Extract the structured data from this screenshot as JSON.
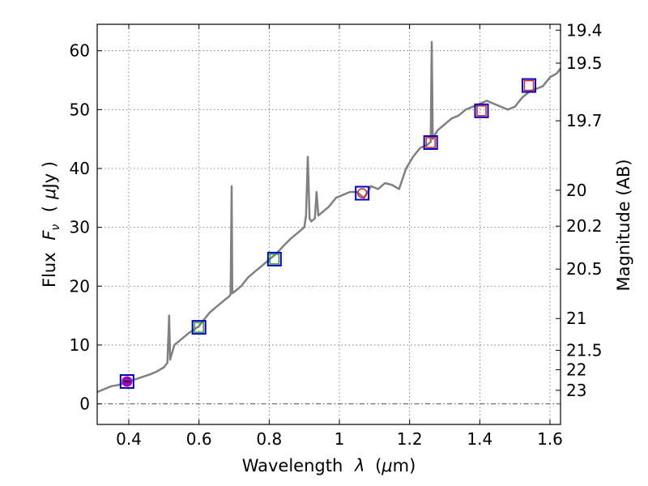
{
  "chart_data": {
    "type": "line",
    "title": "",
    "xlabel": {
      "prefix": "Wavelength",
      "symbol": "λ",
      "unit_open": "(",
      "unit_mu": "μ",
      "unit_rest": "m)"
    },
    "ylabel": {
      "prefix": "Flux",
      "symbol": "F",
      "subscript": "ν",
      "unit_open": "(",
      "unit_mu": "μ",
      "unit_rest": "Jy )"
    },
    "y2label": "Magnitude (AB)",
    "xlim": [
      0.31,
      1.63
    ],
    "ylim": [
      -3.5,
      64.5
    ],
    "x_ticks": [
      {
        "value": 0.4,
        "label": "0.4"
      },
      {
        "value": 0.6,
        "label": "0.6"
      },
      {
        "value": 0.8,
        "label": "0.8"
      },
      {
        "value": 1.0,
        "label": "1"
      },
      {
        "value": 1.2,
        "label": "1.2"
      },
      {
        "value": 1.4,
        "label": "1.4"
      },
      {
        "value": 1.6,
        "label": "1.6"
      }
    ],
    "y_ticks": [
      {
        "value": 0,
        "label": "0"
      },
      {
        "value": 10,
        "label": "10"
      },
      {
        "value": 20,
        "label": "20"
      },
      {
        "value": 30,
        "label": "30"
      },
      {
        "value": 40,
        "label": "40"
      },
      {
        "value": 50,
        "label": "50"
      },
      {
        "value": 60,
        "label": "60"
      }
    ],
    "y2_ticks": [
      {
        "flux": 63.5,
        "label": "19.4"
      },
      {
        "flux": 57.9,
        "label": "19.5"
      },
      {
        "flux": 48.1,
        "label": "19.7"
      },
      {
        "flux": 36.3,
        "label": "20"
      },
      {
        "flux": 30.2,
        "label": "20.2"
      },
      {
        "flux": 22.9,
        "label": "20.5"
      },
      {
        "flux": 14.5,
        "label": "21"
      },
      {
        "flux": 9.1,
        "label": "21.5"
      },
      {
        "flux": 5.8,
        "label": "22"
      },
      {
        "flux": 2.3,
        "label": "23"
      }
    ],
    "grid": true,
    "baseline_flux": 0,
    "series": [
      {
        "name": "spectrum",
        "color": "#808080",
        "x": [
          0.31,
          0.33,
          0.35,
          0.37,
          0.39,
          0.4,
          0.42,
          0.44,
          0.46,
          0.48,
          0.5,
          0.51,
          0.515,
          0.518,
          0.52,
          0.525,
          0.53,
          0.55,
          0.57,
          0.59,
          0.6,
          0.61,
          0.63,
          0.65,
          0.67,
          0.685,
          0.69,
          0.693,
          0.695,
          0.697,
          0.7,
          0.72,
          0.74,
          0.76,
          0.78,
          0.8,
          0.82,
          0.84,
          0.86,
          0.88,
          0.9,
          0.905,
          0.91,
          0.915,
          0.92,
          0.93,
          0.935,
          0.94,
          0.95,
          0.97,
          0.99,
          1.01,
          1.03,
          1.05,
          1.07,
          1.09,
          1.11,
          1.13,
          1.15,
          1.17,
          1.19,
          1.21,
          1.23,
          1.25,
          1.26,
          1.263,
          1.266,
          1.27,
          1.28,
          1.3,
          1.32,
          1.34,
          1.36,
          1.38,
          1.4,
          1.42,
          1.44,
          1.46,
          1.48,
          1.5,
          1.52,
          1.54,
          1.56,
          1.58,
          1.6,
          1.62,
          1.63
        ],
        "y": [
          2.0,
          2.5,
          3.0,
          3.2,
          3.6,
          3.8,
          4.2,
          4.6,
          5.0,
          5.5,
          6.2,
          7.0,
          15.0,
          7.5,
          8.0,
          9.0,
          10.0,
          11.0,
          12.0,
          12.8,
          13.2,
          14.0,
          15.5,
          16.5,
          17.5,
          18.2,
          18.6,
          37.0,
          18.8,
          18.9,
          19.0,
          20.0,
          21.5,
          22.5,
          23.5,
          24.5,
          25.5,
          26.8,
          28.0,
          29.0,
          30.0,
          32.0,
          42.0,
          31.5,
          31.0,
          31.5,
          36.0,
          32.0,
          32.5,
          33.5,
          35.0,
          35.5,
          36.0,
          36.0,
          35.0,
          37.0,
          36.5,
          37.5,
          37.2,
          36.5,
          40.0,
          42.0,
          43.5,
          44.0,
          44.5,
          61.5,
          45.0,
          45.5,
          46.5,
          47.5,
          48.5,
          49.0,
          50.0,
          50.5,
          51.0,
          51.5,
          51.0,
          50.5,
          50.0,
          50.5,
          52.0,
          53.0,
          53.5,
          54.0,
          55.5,
          56.2,
          57.0
        ]
      }
    ],
    "photometry": [
      {
        "x": 0.395,
        "y": 3.8,
        "marker": "filled-circle",
        "color": "#a000c0"
      },
      {
        "x": 0.6,
        "y": 13.0,
        "marker": "square",
        "color": "#30a030"
      },
      {
        "x": 0.815,
        "y": 24.6,
        "marker": "square",
        "color": "#30a030"
      },
      {
        "x": 1.065,
        "y": 35.8,
        "marker": "circle",
        "color": "#e02020"
      },
      {
        "x": 1.26,
        "y": 44.4,
        "marker": "square",
        "color": "#e02020"
      },
      {
        "x": 1.405,
        "y": 49.8,
        "marker": "square",
        "color": "#e02020"
      },
      {
        "x": 1.54,
        "y": 54.1,
        "marker": "square",
        "color": "#e02020"
      }
    ],
    "model_box_color": "#0000cc"
  }
}
